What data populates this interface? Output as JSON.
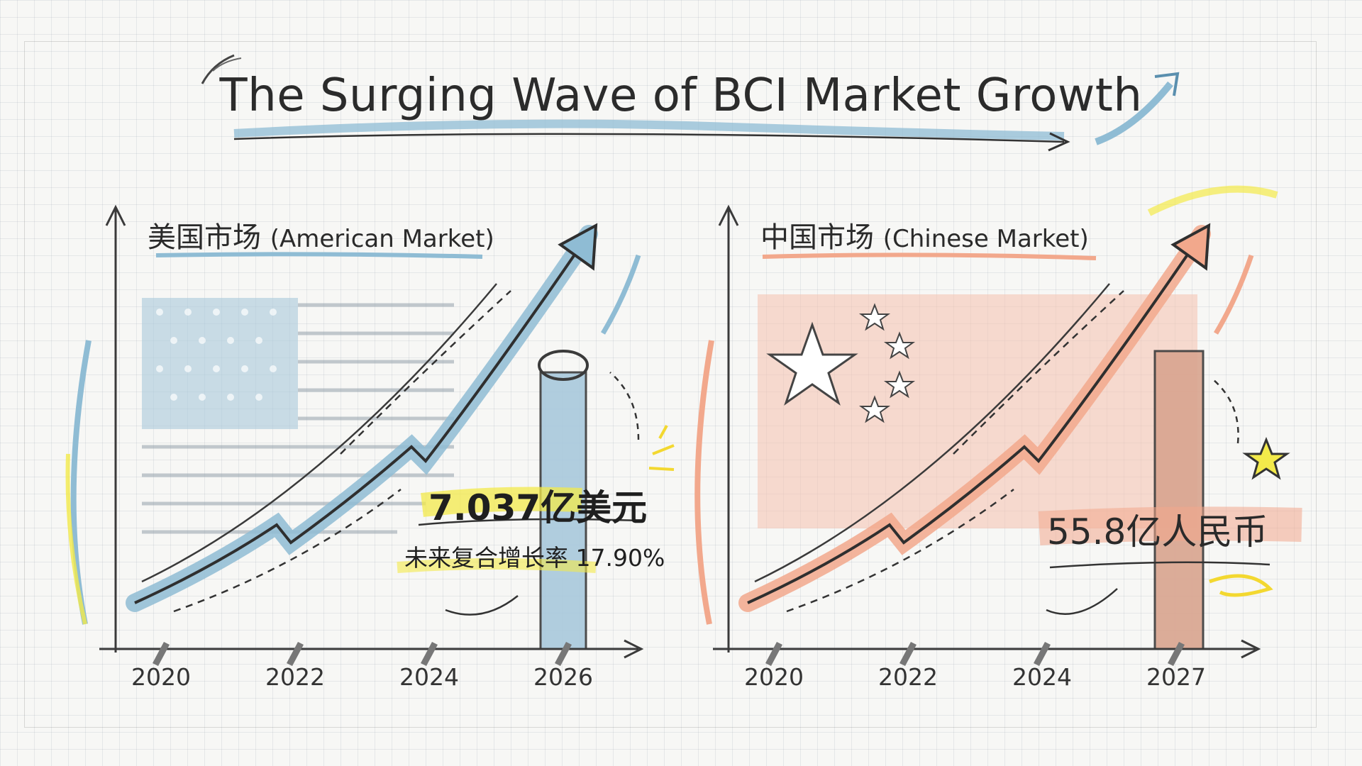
{
  "title": "The Surging Wave of BCI Market Growth",
  "colors": {
    "us_accent": "#8fbcd4",
    "cn_accent": "#f2a88c",
    "highlight": "#f3ea4a",
    "ink": "#2b2b2b"
  },
  "chart_data": [
    {
      "type": "line",
      "title": "美国市场",
      "title_en": "(American Market)",
      "categories": [
        "2020",
        "2022",
        "2024",
        "2026"
      ],
      "annotations": {
        "value": "7.037亿美元",
        "cagr": "未来复合增长率 17.90%"
      },
      "trend": "rising",
      "highlight_year": "2026",
      "accent_color": "#8fbcd4",
      "decoration": "american-flag-icon"
    },
    {
      "type": "line",
      "title": "中国市场",
      "title_en": "(Chinese Market)",
      "categories": [
        "2020",
        "2022",
        "2024",
        "2027"
      ],
      "annotations": {
        "value": "55.8亿人民币"
      },
      "trend": "rising",
      "highlight_year": "2027",
      "accent_color": "#f2a88c",
      "decoration": "chinese-flag-icon"
    }
  ]
}
